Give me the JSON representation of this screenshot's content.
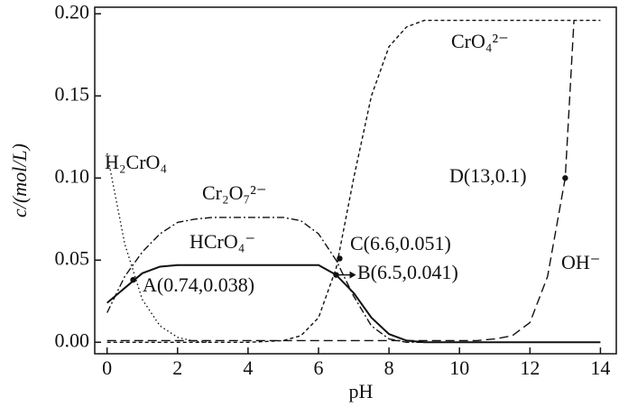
{
  "chart_data": {
    "type": "line",
    "xlabel": "pH",
    "ylabel": "c/(mol/L)",
    "xlim": [
      -0.35,
      14.45
    ],
    "ylim": [
      -0.007,
      0.204
    ],
    "xticks": [
      0,
      2,
      4,
      6,
      8,
      10,
      12,
      14
    ],
    "yticks": [
      {
        "value": 0,
        "label": "0.00"
      },
      {
        "value": 0.05,
        "label": "0.05"
      },
      {
        "value": 0.1,
        "label": "0.10"
      },
      {
        "value": 0.15,
        "label": "0.15"
      },
      {
        "value": 0.2,
        "label": "0.20"
      }
    ],
    "series": [
      {
        "name": "H₂CrO₄",
        "color": "#111111",
        "dash": "dotted",
        "x": [
          0,
          0.5,
          1,
          1.5,
          2,
          2.5,
          3
        ],
        "values": [
          0.115,
          0.06,
          0.026,
          0.01,
          0.003,
          0.0005,
          0
        ]
      },
      {
        "name": "Cr₂O₇²⁻",
        "color": "#111111",
        "dash": "dashdot",
        "x": [
          0,
          0.5,
          1,
          1.5,
          2,
          2.5,
          3,
          3.5,
          4,
          4.5,
          5,
          5.5,
          6,
          6.5,
          7,
          7.5,
          8,
          8.5,
          9
        ],
        "values": [
          0.018,
          0.04,
          0.055,
          0.066,
          0.073,
          0.075,
          0.076,
          0.076,
          0.076,
          0.076,
          0.076,
          0.074,
          0.066,
          0.05,
          0.028,
          0.01,
          0.002,
          0,
          0
        ]
      },
      {
        "name": "HCrO₄⁻",
        "color": "#111111",
        "dash": "solid",
        "x": [
          0,
          0.5,
          1,
          1.5,
          2,
          2.5,
          3,
          4,
          5,
          6,
          6.5,
          7,
          7.5,
          8,
          8.5,
          9,
          10,
          12,
          14
        ],
        "values": [
          0.024,
          0.033,
          0.042,
          0.046,
          0.047,
          0.047,
          0.047,
          0.047,
          0.047,
          0.047,
          0.041,
          0.03,
          0.015,
          0.005,
          0.001,
          0,
          0,
          0,
          0
        ]
      },
      {
        "name": "CrO₄²⁻",
        "color": "#111111",
        "dash": "dashed",
        "x": [
          0,
          2,
          4,
          4.5,
          5,
          5.5,
          6,
          6.5,
          7,
          7.5,
          8,
          8.5,
          9,
          9.5,
          14
        ],
        "values": [
          0,
          0,
          0,
          0.0005,
          0.001,
          0.004,
          0.015,
          0.045,
          0.1,
          0.15,
          0.18,
          0.192,
          0.196,
          0.196,
          0.196
        ]
      },
      {
        "name": "OH⁻",
        "color": "#111111",
        "dash": "longdash",
        "x": [
          0,
          4,
          8,
          10.5,
          11,
          11.5,
          12,
          12.5,
          13,
          13.25
        ],
        "values": [
          0.001,
          0.001,
          0.001,
          0.001,
          0.002,
          0.004,
          0.012,
          0.04,
          0.1,
          0.196
        ]
      }
    ],
    "points": [
      {
        "label": "A(0.74,0.038)",
        "x": 0.74,
        "y": 0.038
      },
      {
        "label": "B(6.5,0.041)",
        "x": 6.5,
        "y": 0.041
      },
      {
        "label": "C(6.6,0.051)",
        "x": 6.6,
        "y": 0.051
      },
      {
        "label": "D(13,0.1)",
        "x": 13,
        "y": 0.1
      }
    ]
  }
}
